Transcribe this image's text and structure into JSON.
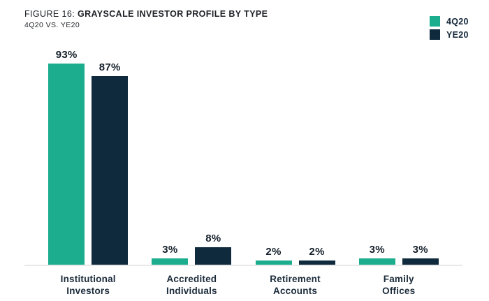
{
  "header": {
    "title_prefix": "FIGURE 16:",
    "title_main": "GRAYSCALE INVESTOR PROFILE BY TYPE",
    "subtitle": "4Q20 VS. YE20"
  },
  "colors": {
    "series_4q20": "#1CAD8E",
    "series_ye20": "#0F2A3C",
    "baseline": "#E9E9E9",
    "text_dark": "#15202B"
  },
  "chart_data": {
    "type": "bar",
    "title": "FIGURE 16: GRAYSCALE INVESTOR PROFILE BY TYPE",
    "subtitle": "4Q20 VS. YE20",
    "categories": [
      "Institutional Investors",
      "Accredited Individuals",
      "Retirement Accounts",
      "Family Offices"
    ],
    "category_lines": [
      [
        "Institutional",
        "Investors"
      ],
      [
        "Accredited",
        "Individuals"
      ],
      [
        "Retirement",
        "Accounts"
      ],
      [
        "Family",
        "Offices"
      ]
    ],
    "series": [
      {
        "name": "4Q20",
        "color": "#1CAD8E",
        "values": [
          93,
          3,
          2,
          3
        ]
      },
      {
        "name": "YE20",
        "color": "#0F2A3C",
        "values": [
          87,
          8,
          2,
          3
        ]
      }
    ],
    "value_suffix": "%",
    "value_labels_shown": true,
    "xlabel": "",
    "ylabel": "",
    "ylim": [
      0,
      100
    ],
    "grid": false,
    "legend_position": "top-right"
  }
}
